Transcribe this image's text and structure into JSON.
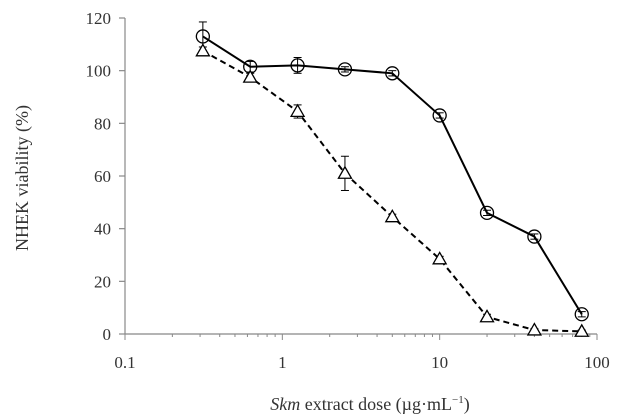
{
  "chart_data": {
    "type": "scatter",
    "xscale": "log",
    "xlim": [
      0.1,
      100
    ],
    "ylim": [
      0,
      120
    ],
    "xticks": [
      0.1,
      1,
      10,
      100
    ],
    "xtick_labels": [
      "0.1",
      "1",
      "10",
      "100"
    ],
    "yticks": [
      0,
      20,
      40,
      60,
      80,
      100,
      120
    ],
    "ytick_labels": [
      "0",
      "20",
      "40",
      "60",
      "80",
      "100",
      "120"
    ],
    "ylabel": "NHEK viability (%)",
    "xlabel": {
      "italic": "Skm",
      "rest": " extract dose (µg·mL",
      "superscript": "−1",
      "close": ")"
    },
    "grid": false,
    "legend": "none",
    "series": [
      {
        "marker": "circle",
        "line_style": "solid",
        "color": "#000000",
        "x": [
          0.3125,
          0.625,
          1.25,
          2.5,
          5,
          10,
          20,
          40,
          80
        ],
        "y": [
          113,
          101.5,
          102,
          100.5,
          99,
          83,
          46,
          37,
          7.5
        ],
        "err": [
          5.5,
          2,
          3,
          1,
          1,
          1,
          1,
          1,
          1
        ]
      },
      {
        "marker": "triangle",
        "line_style": "dashed",
        "color": "#000000",
        "x": [
          0.3125,
          0.625,
          1.25,
          2.5,
          5,
          10,
          20,
          40,
          80
        ],
        "y": [
          107.5,
          97.5,
          84.5,
          61,
          44.5,
          28.5,
          6.5,
          1.5,
          1
        ],
        "err": [
          1.5,
          1.5,
          2.5,
          6.5,
          1,
          1,
          1,
          0.5,
          0.5
        ]
      }
    ]
  }
}
